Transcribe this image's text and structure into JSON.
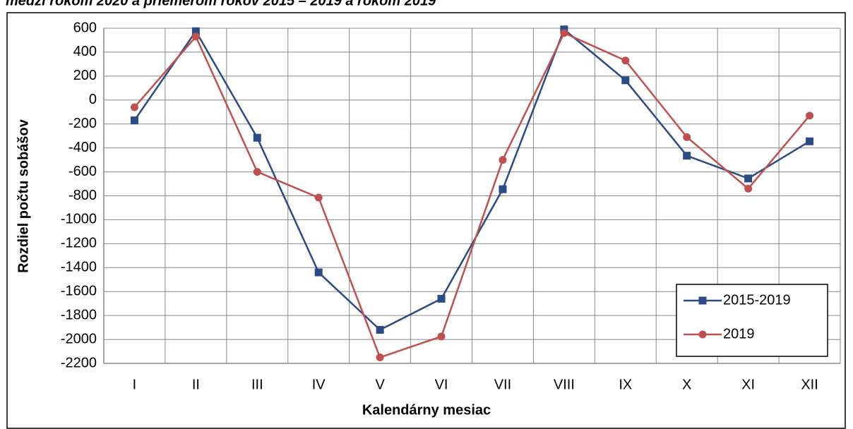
{
  "chart_data": {
    "type": "line",
    "title": "medzi rokom 2020 a priemerom rokov 2015 – 2019 a rokom 2019",
    "x_label": "Kalendárny mesiac",
    "y_label": "Rozdiel počtu sobášov",
    "categories": [
      "I",
      "II",
      "III",
      "IV",
      "V",
      "VI",
      "VII",
      "VIII",
      "IX",
      "X",
      "XI",
      "XII"
    ],
    "series": [
      {
        "name": "2015-2019",
        "color": "#2a4b86",
        "marker": "square",
        "values": [
          -170,
          575,
          -315,
          -1440,
          -1920,
          -1660,
          -745,
          590,
          165,
          -465,
          -655,
          -345
        ]
      },
      {
        "name": "2019",
        "color": "#c0504d",
        "marker": "circle",
        "values": [
          -60,
          530,
          -600,
          -815,
          -2150,
          -1975,
          -500,
          560,
          330,
          -310,
          -740,
          -130
        ]
      }
    ],
    "ylim": [
      -2200,
      600
    ],
    "yticks": [
      600,
      400,
      200,
      0,
      -200,
      -400,
      -600,
      -800,
      -1000,
      -1200,
      -1400,
      -1600,
      -1800,
      -2000,
      -2200
    ],
    "grid": true,
    "legend": "lower right"
  }
}
